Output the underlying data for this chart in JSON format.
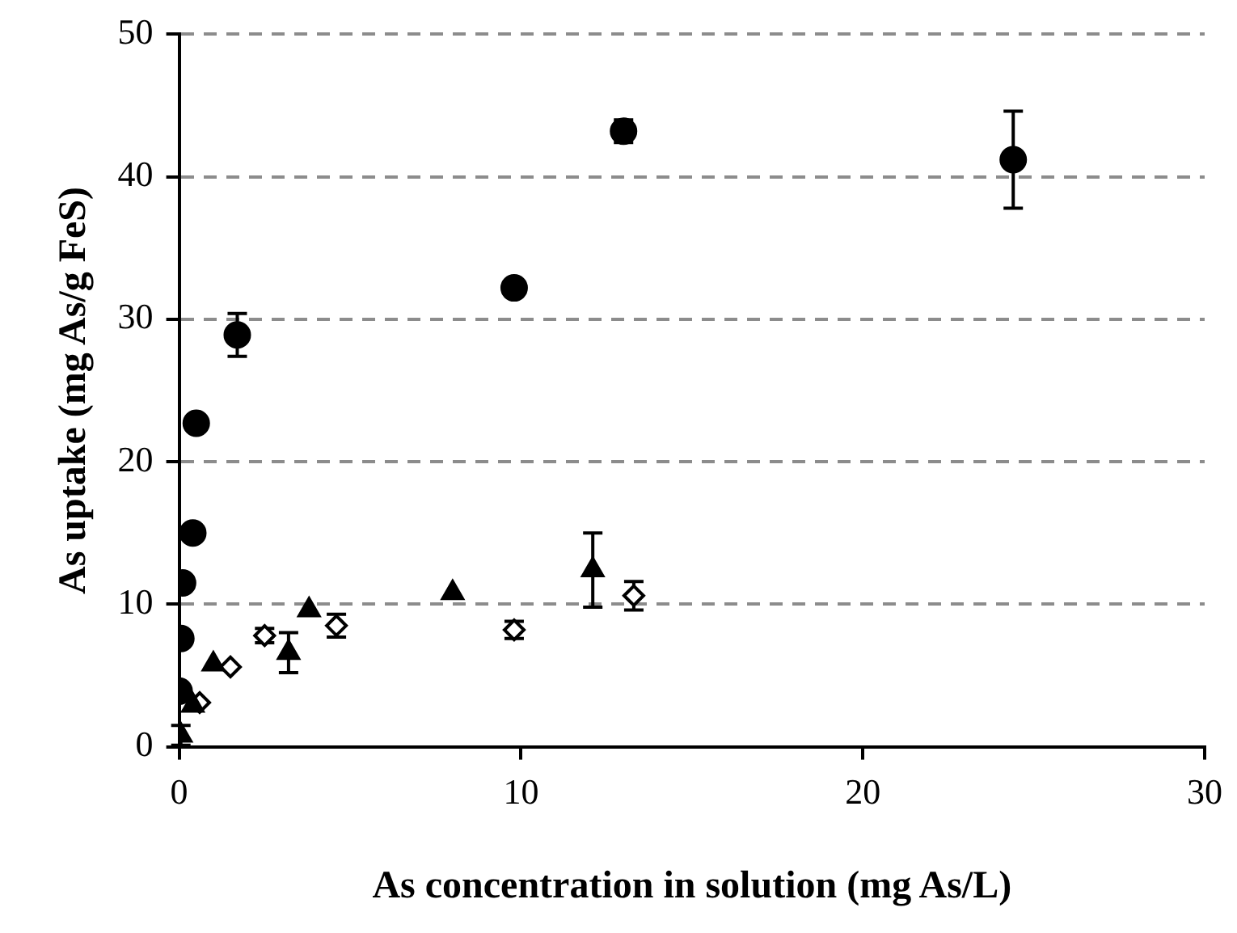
{
  "chart_data": {
    "type": "scatter",
    "xlabel": "As concentration in solution (mg As/L)",
    "ylabel": "As uptake (mg As/g FeS)",
    "xlim": [
      0,
      30
    ],
    "xticks": [
      0,
      10,
      20,
      30
    ],
    "ylim": [
      0,
      50
    ],
    "yticks": [
      0,
      10,
      20,
      30,
      40,
      50
    ],
    "grid": "y",
    "legend": false,
    "series": [
      {
        "color": "#000000",
        "marker": "circle",
        "x": [
          0.0,
          0.05,
          0.1,
          0.4,
          0.5,
          1.7,
          9.8,
          13.0,
          24.4
        ],
        "values": [
          3.9,
          7.6,
          11.5,
          15.0,
          22.7,
          28.9,
          32.2,
          43.2,
          41.2
        ],
        "errors": [
          null,
          null,
          null,
          null,
          null,
          1.5,
          null,
          0.8,
          3.4
        ]
      },
      {
        "color": "#000000",
        "marker": "triangle",
        "x": [
          0.05,
          0.4,
          1.0,
          3.2,
          3.8,
          8.0,
          12.1
        ],
        "values": [
          0.8,
          2.9,
          5.8,
          6.6,
          9.6,
          10.8,
          12.4
        ],
        "errors": [
          0.7,
          null,
          null,
          1.4,
          null,
          null,
          2.6
        ]
      },
      {
        "color": "#000000",
        "marker": "diamond",
        "x": [
          0.6,
          1.5,
          2.5,
          4.6,
          9.8,
          13.3
        ],
        "values": [
          3.1,
          5.6,
          7.8,
          8.5,
          8.2,
          10.6
        ],
        "errors": [
          null,
          null,
          0.5,
          0.8,
          0.6,
          1.0
        ]
      }
    ]
  }
}
